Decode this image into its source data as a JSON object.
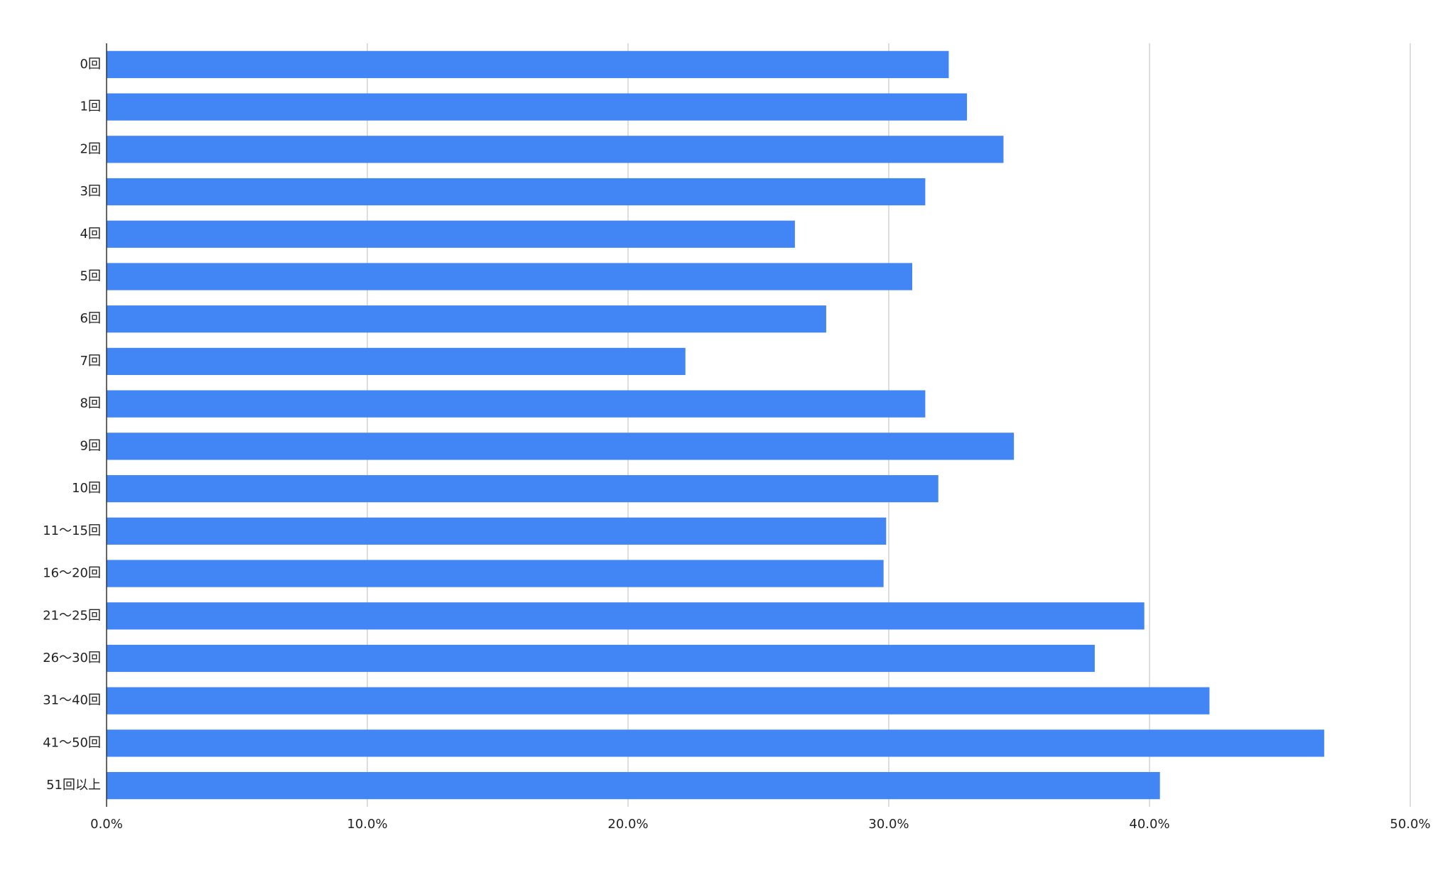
{
  "chart_data": {
    "type": "hbar",
    "categories": [
      "0回",
      "1回",
      "2回",
      "3回",
      "4回",
      "5回",
      "6回",
      "7回",
      "8回",
      "9回",
      "10回",
      "11〜15回",
      "16〜20回",
      "21〜25回",
      "26〜30回",
      "31〜40回",
      "41〜50回",
      "51回以上"
    ],
    "values": [
      32.3,
      33.0,
      34.4,
      31.4,
      26.4,
      30.9,
      27.6,
      22.2,
      31.4,
      34.8,
      31.9,
      29.9,
      29.8,
      39.8,
      37.9,
      42.3,
      46.7,
      40.4
    ],
    "color": "#4285f4",
    "xlim": [
      0,
      50
    ],
    "xticks": [
      {
        "value": 0,
        "label": "0.0%"
      },
      {
        "value": 10,
        "label": "10.0%"
      },
      {
        "value": 20,
        "label": "20.0%"
      },
      {
        "value": 30,
        "label": "30.0%"
      },
      {
        "value": 40,
        "label": "40.0%"
      },
      {
        "value": 50,
        "label": "50.0%"
      }
    ],
    "grid": true
  }
}
